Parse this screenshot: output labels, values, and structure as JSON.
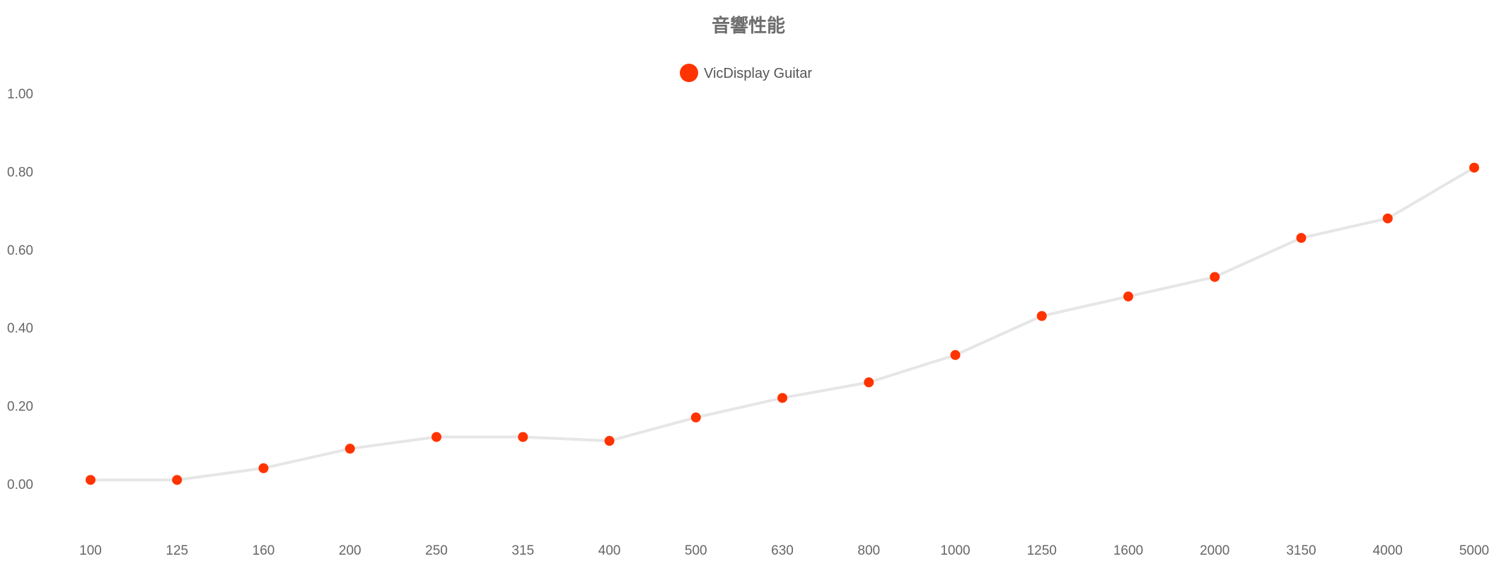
{
  "chart_data": {
    "type": "line",
    "title": "音響性能",
    "xlabel": "",
    "ylabel": "",
    "categories": [
      "100",
      "125",
      "160",
      "200",
      "250",
      "315",
      "400",
      "500",
      "630",
      "800",
      "1000",
      "1250",
      "1600",
      "2000",
      "3150",
      "4000",
      "5000"
    ],
    "series": [
      {
        "name": "VicDisplay Guitar",
        "values": [
          0.01,
          0.01,
          0.04,
          0.09,
          0.12,
          0.12,
          0.11,
          0.17,
          0.22,
          0.26,
          0.33,
          0.43,
          0.48,
          0.53,
          0.63,
          0.68,
          0.81
        ]
      }
    ],
    "ylim": [
      -0.1,
      1.1
    ],
    "yticks": [
      "0.00",
      "0.20",
      "0.40",
      "0.60",
      "0.80",
      "1.00"
    ],
    "grid": false,
    "legend": "top-center",
    "colors": {
      "marker": "#ff3300",
      "line": "#e6e6e6"
    }
  }
}
